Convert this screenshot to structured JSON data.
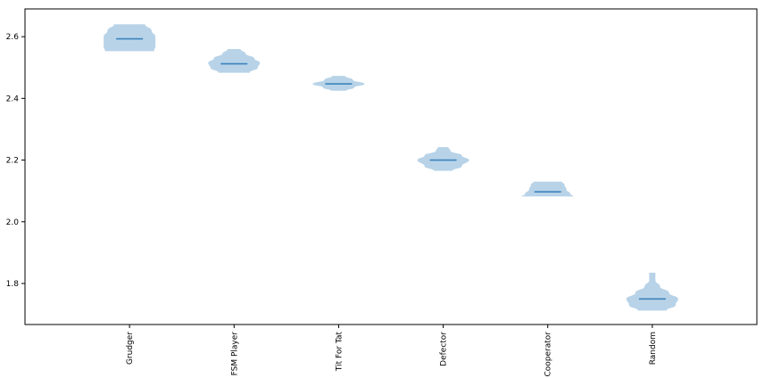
{
  "chart_data": {
    "type": "violin",
    "categories": [
      "Grudger",
      "FSM Player",
      "Tit For Tat",
      "Defector",
      "Cooperator",
      "Random"
    ],
    "medians": [
      2.593,
      2.512,
      2.447,
      2.2,
      2.097,
      1.75
    ],
    "ranges": [
      [
        2.553,
        2.64
      ],
      [
        2.483,
        2.56
      ],
      [
        2.425,
        2.473
      ],
      [
        2.165,
        2.242
      ],
      [
        2.082,
        2.13
      ],
      [
        1.712,
        1.835
      ]
    ],
    "profiles": [
      [
        [
          2.553,
          0.95
        ],
        [
          2.57,
          1.0
        ],
        [
          2.6,
          1.0
        ],
        [
          2.62,
          0.85
        ],
        [
          2.64,
          0.6
        ]
      ],
      [
        [
          2.483,
          0.6
        ],
        [
          2.5,
          0.92
        ],
        [
          2.515,
          1.0
        ],
        [
          2.53,
          0.78
        ],
        [
          2.545,
          0.45
        ],
        [
          2.56,
          0.25
        ]
      ],
      [
        [
          2.425,
          0.3
        ],
        [
          2.435,
          0.6
        ],
        [
          2.447,
          1.0
        ],
        [
          2.46,
          0.55
        ],
        [
          2.473,
          0.25
        ]
      ],
      [
        [
          2.165,
          0.35
        ],
        [
          2.18,
          0.72
        ],
        [
          2.2,
          1.0
        ],
        [
          2.215,
          0.72
        ],
        [
          2.23,
          0.28
        ],
        [
          2.242,
          0.2
        ]
      ],
      [
        [
          2.082,
          1.0
        ],
        [
          2.09,
          0.88
        ],
        [
          2.105,
          0.72
        ],
        [
          2.12,
          0.65
        ],
        [
          2.13,
          0.55
        ]
      ],
      [
        [
          1.712,
          0.55
        ],
        [
          1.73,
          0.9
        ],
        [
          1.75,
          1.0
        ],
        [
          1.77,
          0.65
        ],
        [
          1.79,
          0.3
        ],
        [
          1.81,
          0.12
        ],
        [
          1.835,
          0.12
        ]
      ]
    ],
    "yticks": [
      1.8,
      2.0,
      2.2,
      2.4,
      2.6
    ],
    "ylim": [
      1.667,
      2.69
    ],
    "xlim": [
      0,
      7
    ],
    "title": "",
    "xlabel": "",
    "ylabel": "",
    "grid": false,
    "body_color": "#b8d3e8",
    "median_color": "#3b83bd",
    "axis_color": "#000000"
  }
}
